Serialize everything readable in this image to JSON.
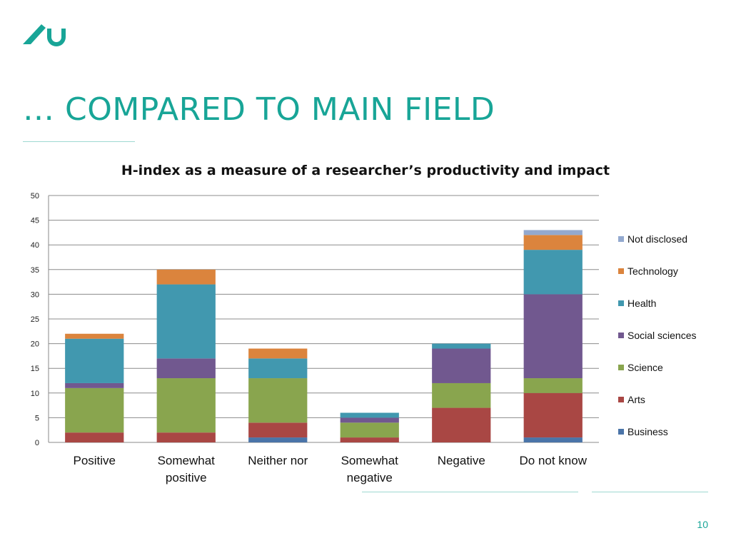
{
  "slide": {
    "title": "… Compared to main field",
    "page_number": "10",
    "colors": {
      "accent": "#18a597",
      "rule": "#9ed9d2"
    }
  },
  "logo": {
    "icon": "au-logo-icon",
    "color": "#18a597"
  },
  "chart_data": {
    "type": "bar",
    "stacked": true,
    "title": "H-index as a measure of a researcher’s productivity and impact",
    "categories": [
      "Positive",
      "Somewhat positive",
      "Neither nor",
      "Somewhat negative",
      "Negative",
      "Do not know"
    ],
    "category_lines": [
      [
        "Positive"
      ],
      [
        "Somewhat",
        "positive"
      ],
      [
        "Neither nor"
      ],
      [
        "Somewhat",
        "negative"
      ],
      [
        "Negative"
      ],
      [
        "Do not know"
      ]
    ],
    "series": [
      {
        "name": "Business",
        "color": "#4a74a8",
        "values": [
          0,
          0,
          1,
          0,
          0,
          1
        ]
      },
      {
        "name": "Arts",
        "color": "#a94744",
        "values": [
          2,
          2,
          3,
          1,
          7,
          9
        ]
      },
      {
        "name": "Science",
        "color": "#89a54e",
        "values": [
          9,
          11,
          9,
          3,
          5,
          3
        ]
      },
      {
        "name": "Social sciences",
        "color": "#71588f",
        "values": [
          1,
          4,
          0,
          1,
          7,
          17
        ]
      },
      {
        "name": "Health",
        "color": "#4198af",
        "values": [
          9,
          15,
          4,
          1,
          1,
          9
        ]
      },
      {
        "name": "Technology",
        "color": "#db843d",
        "values": [
          1,
          3,
          2,
          0,
          0,
          3
        ]
      },
      {
        "name": "Not disclosed",
        "color": "#93a9cf",
        "values": [
          0,
          0,
          0,
          0,
          0,
          1
        ]
      }
    ],
    "y_ticks": [
      "0",
      "5",
      "10",
      "15",
      "20",
      "25",
      "30",
      "35",
      "40",
      "45",
      "50"
    ],
    "ylim": [
      0,
      50
    ],
    "grid": true,
    "legend": {
      "position": "right",
      "order": "reverse"
    }
  }
}
